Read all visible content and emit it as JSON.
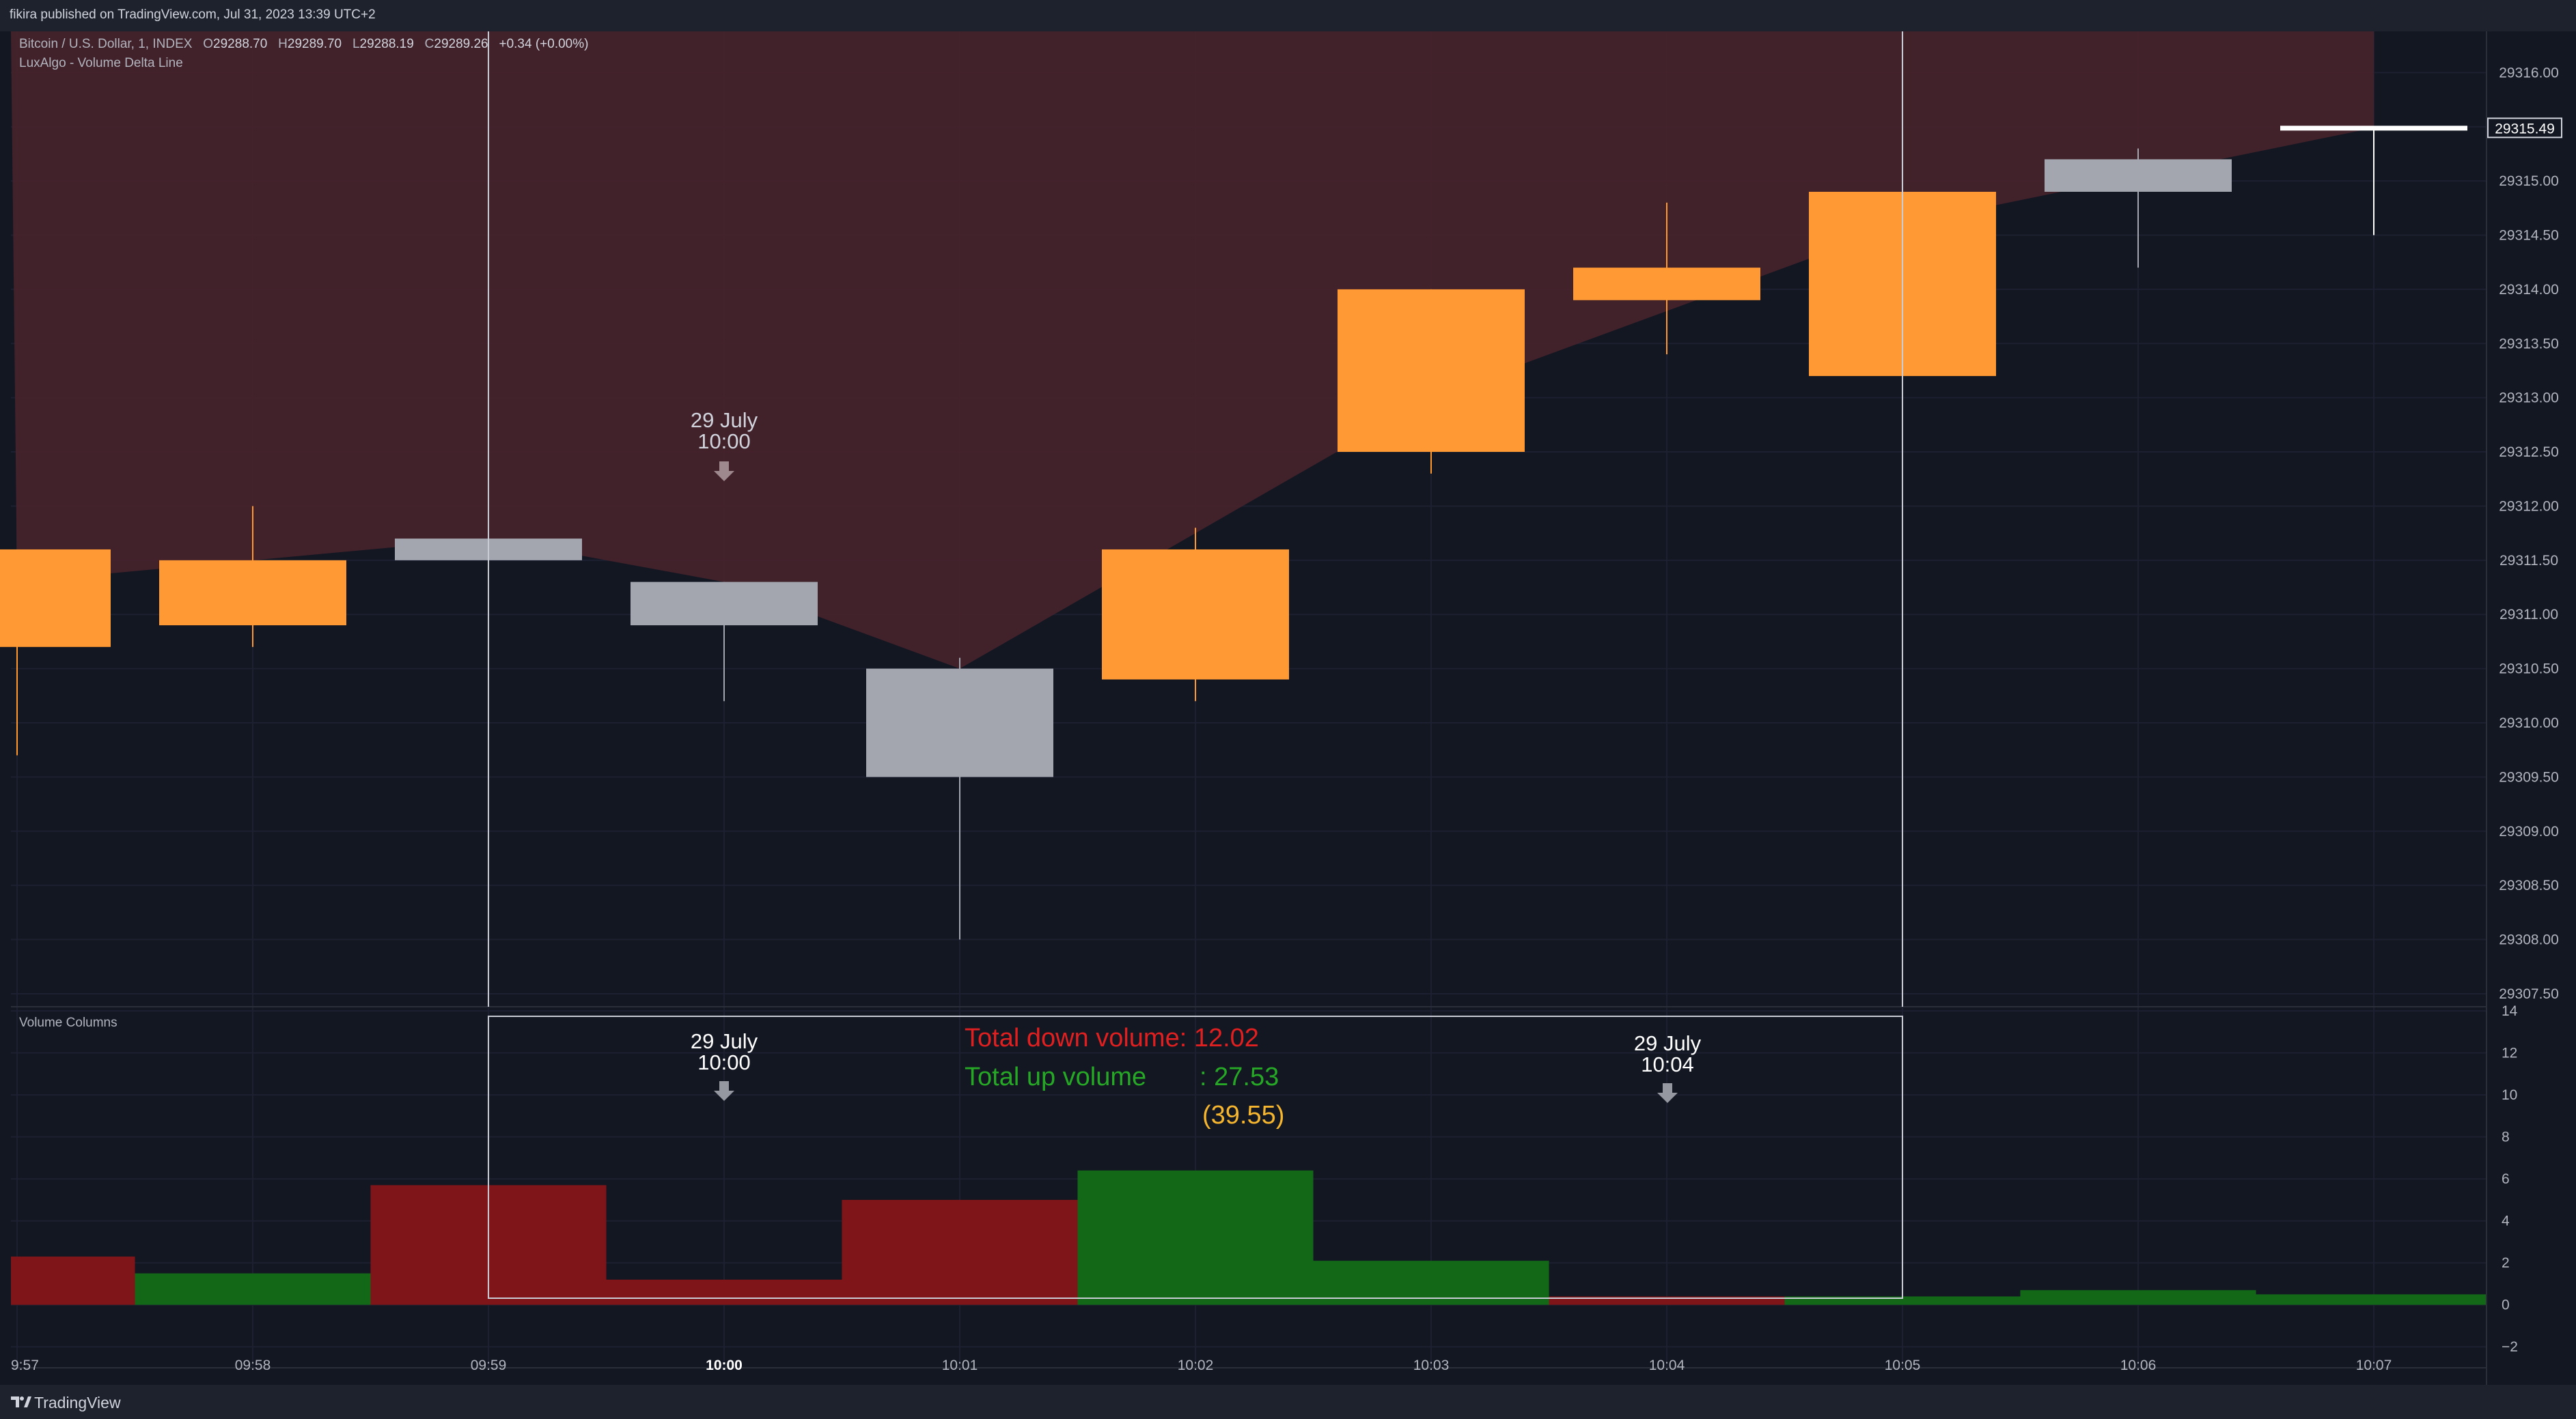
{
  "header": {
    "publisher": "fikira published on TradingView.com, Jul 31, 2023 13:39 UTC+2"
  },
  "legend": {
    "symbol": "Bitcoin / U.S. Dollar, 1, INDEX",
    "o_label": "O",
    "o_value": "29288.70",
    "h_label": "H",
    "h_value": "29289.70",
    "l_label": "L",
    "l_value": "29288.19",
    "c_label": "C",
    "c_value": "29289.26",
    "change": "+0.34 (+0.00%)",
    "indicator": "LuxAlgo - Volume Delta Line"
  },
  "volume_pane": {
    "title": "Volume Columns"
  },
  "annotations": {
    "label_1_date": "29 July",
    "label_1_time": "10:00",
    "label_2_date": "29 July",
    "label_2_time": "10:00",
    "label_3_date": "29 July",
    "label_3_time": "10:04",
    "total_down": "Total down volume: 12.02",
    "total_up_label": "Total up volume",
    "total_up_value": ": 27.53",
    "total_sum": "(39.55)"
  },
  "last_price_label": "29315.49",
  "footer": {
    "brand": "TradingView"
  },
  "colors": {
    "background": "#131722",
    "candle_up": "#ff9933",
    "candle_down": "#a3a6af",
    "candle_last": "#ffffff",
    "delta_fill": "#4a232c",
    "vol_down": "#801519",
    "vol_up": "#136818",
    "text_down": "#e02020",
    "text_up": "#26a826",
    "text_sum": "#f5b52e"
  },
  "chart_data": [
    {
      "type": "candlestick",
      "title": "Bitcoin / U.S. Dollar, 1, INDEX",
      "x": [
        "09:57",
        "09:58",
        "09:59",
        "10:00",
        "10:01",
        "10:02",
        "10:03",
        "10:04",
        "10:05",
        "10:06",
        "10:07"
      ],
      "x_tick_labels": [
        "9:57",
        "09:58",
        "09:59",
        "10:00",
        "10:01",
        "10:02",
        "10:03",
        "10:04",
        "10:05",
        "10:06",
        "10:07"
      ],
      "open": [
        29310.7,
        29310.9,
        29311.7,
        29311.3,
        29310.5,
        29310.4,
        29312.5,
        29313.9,
        29313.2,
        29315.2,
        29315.49
      ],
      "high": [
        29311.6,
        29312.0,
        29312.2,
        29311.3,
        29310.6,
        29311.8,
        29314.0,
        29314.8,
        29314.9,
        29315.3,
        29315.49
      ],
      "low": [
        29309.7,
        29310.7,
        29311.5,
        29310.2,
        29308.0,
        29310.2,
        29312.3,
        29313.4,
        29313.2,
        29314.2,
        29314.5
      ],
      "close": [
        29311.6,
        29311.5,
        29311.5,
        29310.9,
        29309.5,
        29311.6,
        29314.0,
        29314.2,
        29314.9,
        29314.9,
        29315.49
      ],
      "y_ticks": [
        29307.5,
        29308.0,
        29308.5,
        29309.0,
        29309.5,
        29310.0,
        29310.5,
        29311.0,
        29311.5,
        29312.0,
        29312.5,
        29313.0,
        29313.5,
        29314.0,
        29314.5,
        29315.0,
        29315.5,
        29316.0
      ],
      "ylim": [
        29307.38,
        29316.38
      ],
      "delta_line": [
        {
          "x": "09:57",
          "y": 29311.3
        },
        {
          "x": "09:59",
          "y": 29311.7
        },
        {
          "x": "10:00",
          "y": 29311.3
        },
        {
          "x": "10:01",
          "y": 29310.5
        },
        {
          "x": "10:03",
          "y": 29313.0
        },
        {
          "x": "10:05",
          "y": 29314.6
        },
        {
          "x": "10:07",
          "y": 29315.49
        },
        {
          "x": "10:07",
          "y": 29316.8
        }
      ],
      "last_price": 29315.49
    },
    {
      "type": "bar",
      "title": "Volume Columns",
      "x": [
        "09:57",
        "09:58",
        "09:59",
        "10:00",
        "10:01",
        "10:02",
        "10:03",
        "10:04",
        "10:05",
        "10:06",
        "10:07"
      ],
      "values": [
        2.3,
        1.5,
        5.7,
        1.2,
        5.0,
        6.4,
        2.1,
        0.4,
        0.4,
        0.7,
        0.5
      ],
      "direction": [
        "down",
        "up",
        "down",
        "down",
        "down",
        "up",
        "up",
        "down",
        "up",
        "up",
        "up"
      ],
      "y_ticks": [
        -2,
        0,
        2,
        4,
        6,
        8,
        10,
        12,
        14
      ],
      "ylim": [
        -3.0,
        14.2
      ],
      "selection_range": [
        "09:59",
        "10:05"
      ]
    }
  ]
}
